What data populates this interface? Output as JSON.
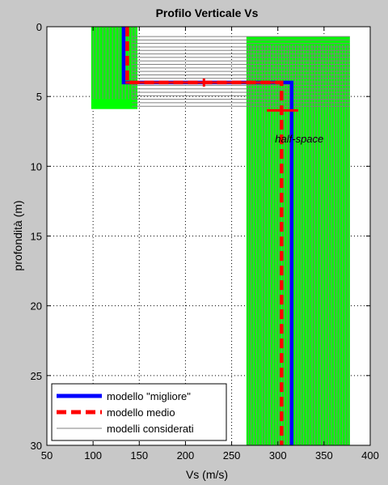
{
  "chart_data": {
    "type": "line",
    "title": "Profilo Verticale Vs",
    "xlabel": "Vs (m/s)",
    "ylabel": "profondità (m)",
    "xlim": [
      50,
      400
    ],
    "ylim": [
      0,
      30
    ],
    "y_reversed": true,
    "grid": true,
    "xticks": [
      50,
      100,
      150,
      200,
      250,
      300,
      350,
      400
    ],
    "yticks": [
      0,
      5,
      10,
      15,
      20,
      25,
      30
    ],
    "annotation": "half-space",
    "legend": {
      "placement": "bottom-left",
      "entries": [
        "modello \"migliore\"",
        "modello medio",
        "modelli considerati"
      ]
    },
    "series": [
      {
        "name": "modello \"migliore\"",
        "color": "#0000ff",
        "style": "solid",
        "x": [
          133,
          133,
          315,
          315
        ],
        "y": [
          0,
          4,
          4,
          30
        ]
      },
      {
        "name": "modello medio",
        "color": "#ff0000",
        "style": "dashed",
        "x": [
          137,
          137,
          304,
          304
        ],
        "y": [
          0,
          4,
          4,
          30
        ]
      }
    ],
    "error_bars": [
      {
        "x": 220,
        "y": 4,
        "x_from": 135,
        "x_to": 305,
        "color": "#ff0000"
      },
      {
        "x": 304,
        "y": 6,
        "x_from": 288,
        "x_to": 322,
        "color": "#ff0000"
      }
    ],
    "considered_models": {
      "name": "modelli considerati",
      "line_color": "#808080",
      "fill_color": "#00ff00",
      "layer1": {
        "vs_range": [
          98,
          148
        ],
        "depth_range": [
          0,
          5.9
        ]
      },
      "halfspace": {
        "vs_range": [
          266,
          378
        ],
        "depth_from_range": [
          0.7,
          5.8
        ]
      }
    }
  },
  "colors": {
    "figure_bg": "#c8c8c8",
    "axes_bg": "#ffffff",
    "envelope": "#00ff00",
    "models": "#808080",
    "best": "#0000ff",
    "mean": "#ff0000"
  }
}
